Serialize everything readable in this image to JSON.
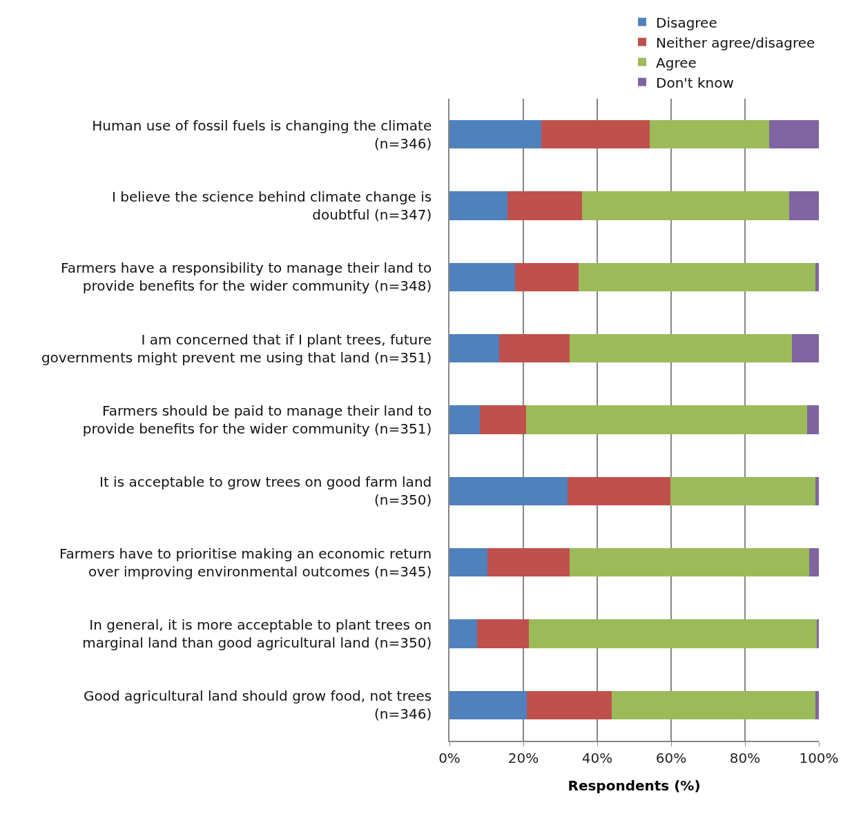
{
  "chart_data": {
    "type": "bar",
    "orientation": "horizontal",
    "stacked": true,
    "xlabel": "Respondents (%)",
    "categories": [
      "Human use of fossil fuels is changing the climate (n=346)",
      "I believe the science behind climate change is doubtful (n=347)",
      "Farmers have a responsibility to manage their land to provide benefits for the wider community (n=348)",
      "I am concerned that if I plant trees, future governments might prevent me using that land (n=351)",
      "Farmers should be paid to manage their land to provide benefits for the wider community (n=351)",
      "It is acceptable to grow trees on good farm land (n=350)",
      "Farmers have to prioritise making an economic return over improving environmental outcomes (n=345)",
      "In general, it is more acceptable to plant trees on marginal land than good agricultural land (n=350)",
      "Good agricultural land should grow food, not trees (n=346)"
    ],
    "series": [
      {
        "name": "Disagree",
        "color": "#4f81bd",
        "values": [
          24.9,
          15.7,
          17.8,
          13.4,
          8.3,
          32.0,
          10.2,
          7.4,
          21.0
        ]
      },
      {
        "name": "Neither agree/disagree",
        "color": "#c0504d",
        "values": [
          29.3,
          20.2,
          17.1,
          19.2,
          12.5,
          27.9,
          22.4,
          14.1,
          23.0
        ]
      },
      {
        "name": "Agree",
        "color": "#9bbb59",
        "values": [
          32.3,
          56.1,
          64.1,
          60.1,
          76.0,
          39.1,
          64.7,
          78.0,
          55.0
        ]
      },
      {
        "name": "Don't know",
        "color": "#8064a2",
        "values": [
          13.5,
          8.0,
          1.0,
          7.3,
          3.2,
          1.0,
          2.7,
          0.5,
          1.0
        ]
      }
    ],
    "xlim": [
      0,
      100
    ],
    "xticks": [
      {
        "value": 0,
        "label": "0%"
      },
      {
        "value": 20,
        "label": "20%"
      },
      {
        "value": 40,
        "label": "40%"
      },
      {
        "value": 60,
        "label": "60%"
      },
      {
        "value": 80,
        "label": "80%"
      },
      {
        "value": 100,
        "label": "100%"
      }
    ],
    "grid": "x",
    "legend": "top right"
  }
}
